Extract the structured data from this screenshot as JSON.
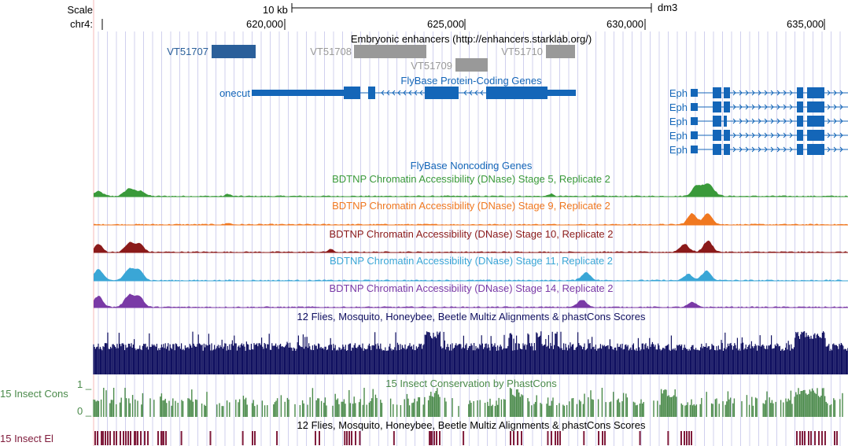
{
  "header": {
    "scale_label": "Scale",
    "chrom_label": "chr4:",
    "scale_bar_text": "10 kb",
    "assembly": "dm3",
    "positions": [
      "620,000",
      "625,000",
      "630,000",
      "635,000"
    ]
  },
  "tracks": {
    "enhancers": {
      "title": "Embryonic enhancers (http://enhancers.starklab.org/)",
      "items": [
        {
          "name": "VT51707",
          "selected": true
        },
        {
          "name": "VT51708",
          "selected": false
        },
        {
          "name": "VT51709",
          "selected": false
        },
        {
          "name": "VT51710",
          "selected": false
        }
      ]
    },
    "coding": {
      "title": "FlyBase Protein-Coding Genes",
      "gene_left": "onecut",
      "gene_right": [
        "Eph",
        "Eph",
        "Eph",
        "Eph",
        "Eph"
      ]
    },
    "noncoding": {
      "title": "FlyBase Noncoding Genes"
    },
    "dnase": [
      {
        "title": "BDTNP Chromatin Accessibility (DNase) Stage 5, Replicate 2",
        "color": "#3a9a3a"
      },
      {
        "title": "BDTNP Chromatin Accessibility (DNase) Stage 9, Replicate 2",
        "color": "#f07820"
      },
      {
        "title": "BDTNP Chromatin Accessibility (DNase) Stage 10, Replicate 2",
        "color": "#8b1a1a"
      },
      {
        "title": "BDTNP Chromatin Accessibility (DNase) Stage 11, Replicate 2",
        "color": "#3aa6d6"
      },
      {
        "title": "BDTNP Chromatin Accessibility (DNase) Stage 14, Replicate 2",
        "color": "#7a3aa6"
      }
    ],
    "multiz": {
      "title": "12 Flies, Mosquito, Honeybee, Beetle Multiz Alignments & phastCons Scores",
      "color": "#101060"
    },
    "phastcons": {
      "title": "15 Insect Conservation by PhastCons",
      "side_label": "15 Insect Cons",
      "axis_max": "1 _",
      "axis_min": "0 _",
      "color": "#4a8a4a"
    },
    "elements": {
      "title": "12 Flies, Mosquito, Honeybee, Beetle Multiz Alignments & phastCons Scores",
      "side_label": "15 Insect El",
      "color": "#801c3c"
    }
  },
  "colors": {
    "enhancer_selected": "#2a5f9a",
    "enhancer_other": "#999999",
    "gene": "#1466b8",
    "gridline": "#d0d0ee",
    "left_margin_line": "#f4b8b8"
  }
}
